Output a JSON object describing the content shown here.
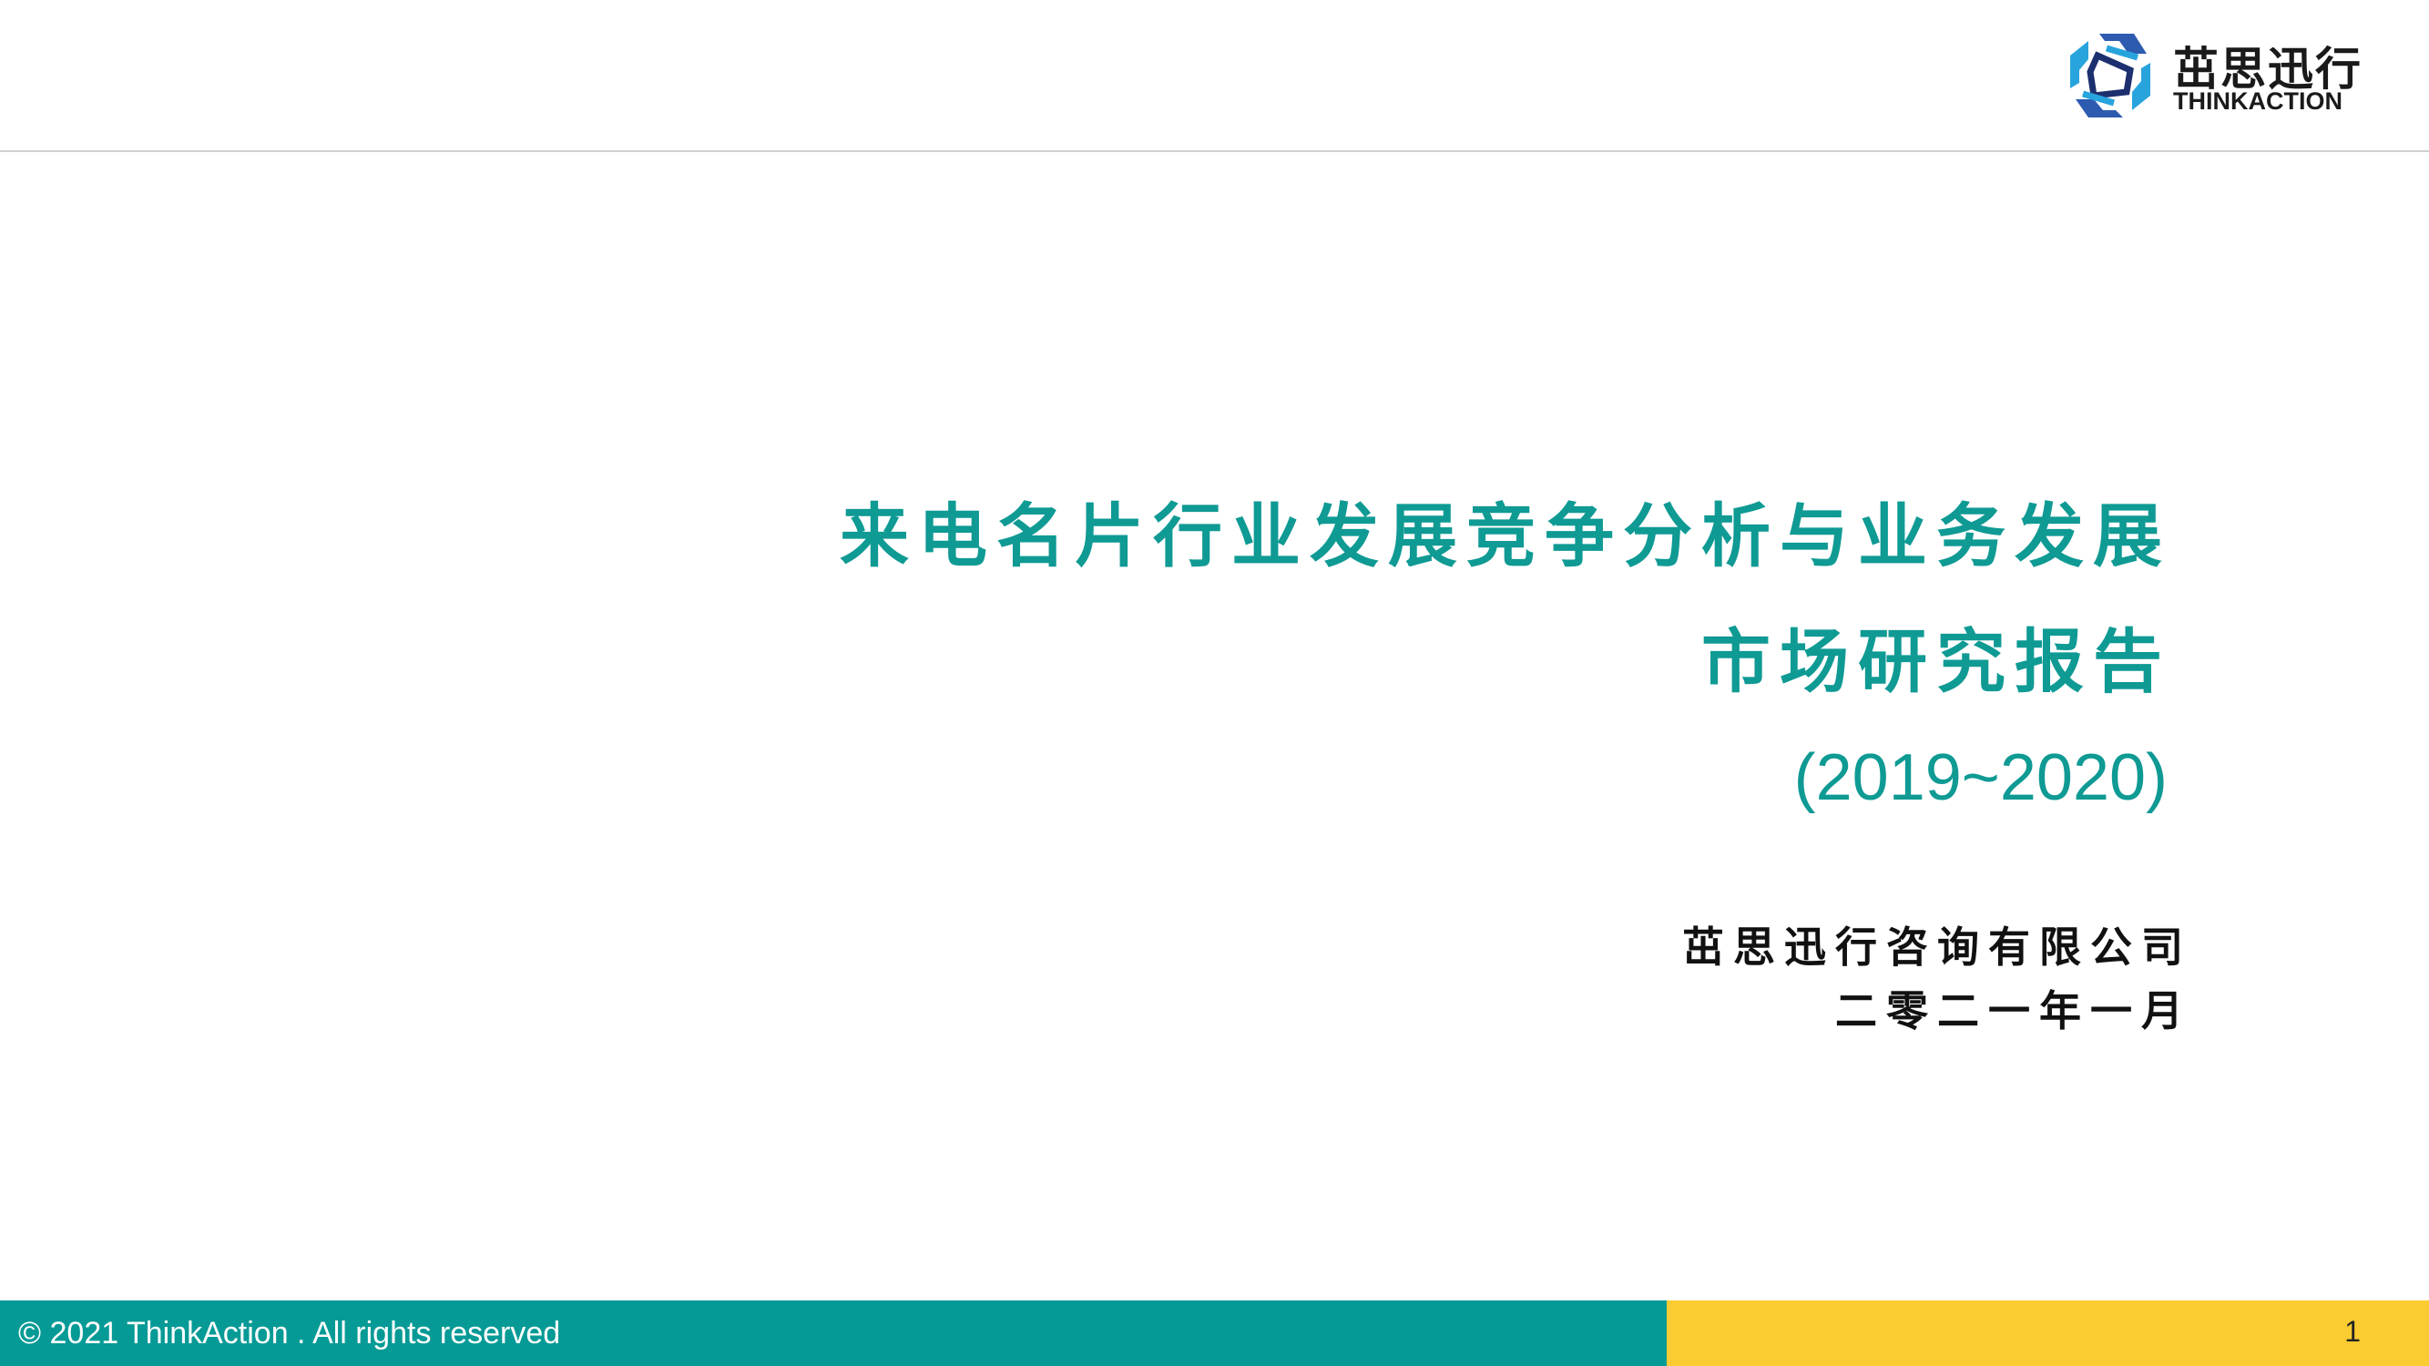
{
  "header": {
    "logo": {
      "name_cn": "茁思迅行",
      "name_en": "THINKACTION",
      "mark_colors": [
        "#2d5bb0",
        "#28a4dd",
        "#1c2f6e"
      ]
    }
  },
  "title": {
    "line1": "来电名片行业发展竞争分析与业务发展",
    "line2": "市场研究报告",
    "years": "(2019~2020)",
    "color": "#0f9a94"
  },
  "publisher": {
    "company": "茁思迅行咨询有限公司",
    "date": "二零二一年一月"
  },
  "footer": {
    "copyright": "© 2021 ThinkAction . All rights reserved",
    "page_number": "1",
    "left_color": "#069a96",
    "right_color": "#fbcb32"
  }
}
